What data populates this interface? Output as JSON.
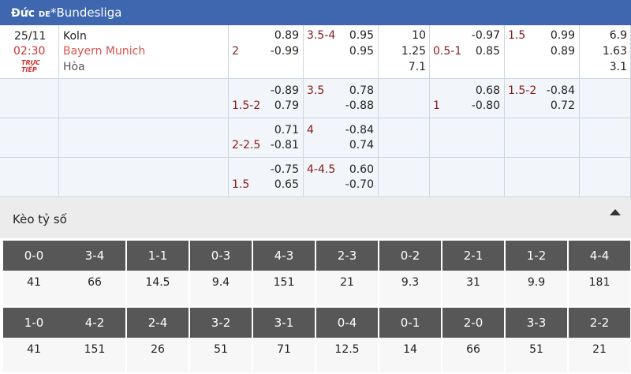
{
  "header": {
    "country": "Đức",
    "code": "DE",
    "league": "*Bundesliga"
  },
  "match": {
    "date": "25/11",
    "time": "02:30",
    "status": [
      "TRỰC",
      "TIẾP"
    ],
    "home": "Koln",
    "away": "Bayern Munich",
    "draw": "Hòa"
  },
  "odds_rows": [
    {
      "handicap": [
        [
          null,
          "0.89"
        ],
        [
          "2",
          "-0.99"
        ]
      ],
      "over_under": [
        [
          "3.5-4",
          "0.95"
        ],
        [
          null,
          "0.95"
        ]
      ],
      "result": [
        "10",
        "1.25",
        "7.1"
      ],
      "half_handicap": [
        [
          null,
          "-0.97"
        ],
        [
          "0.5-1",
          "0.85"
        ]
      ],
      "half_over_under": [
        [
          "1.5",
          "0.99"
        ],
        [
          null,
          "0.89"
        ]
      ],
      "half_result": [
        "6.9",
        "1.63",
        "3.1"
      ]
    },
    {
      "handicap": [
        [
          null,
          "-0.89"
        ],
        [
          "1.5-2",
          "0.79"
        ]
      ],
      "over_under": [
        [
          "3.5",
          "0.78"
        ],
        [
          null,
          "-0.88"
        ]
      ],
      "half_handicap": [
        [
          null,
          "0.68"
        ],
        [
          "1",
          "-0.80"
        ]
      ],
      "half_over_under": [
        [
          "1.5-2",
          "-0.84"
        ],
        [
          null,
          "0.72"
        ]
      ]
    },
    {
      "handicap": [
        [
          null,
          "0.71"
        ],
        [
          "2-2.5",
          "-0.81"
        ]
      ],
      "over_under": [
        [
          "4",
          "-0.84"
        ],
        [
          null,
          "0.74"
        ]
      ]
    },
    {
      "handicap": [
        [
          null,
          "-0.75"
        ],
        [
          "1.5",
          "0.65"
        ]
      ],
      "over_under": [
        [
          "4-4.5",
          "0.60"
        ],
        [
          null,
          "-0.70"
        ]
      ]
    }
  ],
  "correct_score": {
    "title": "Kèo tỷ số",
    "groups": [
      {
        "scores": [
          "0-0",
          "3-4",
          "1-1",
          "0-3",
          "4-3",
          "2-3",
          "0-2",
          "2-1",
          "1-2",
          "4-4"
        ],
        "odds": [
          "41",
          "66",
          "14.5",
          "9.4",
          "151",
          "21",
          "9.3",
          "31",
          "9.9",
          "181"
        ]
      },
      {
        "scores": [
          "1-0",
          "4-2",
          "2-4",
          "3-2",
          "3-1",
          "0-4",
          "0-1",
          "2-0",
          "3-3",
          "2-2"
        ],
        "odds": [
          "41",
          "151",
          "26",
          "51",
          "71",
          "12.5",
          "14",
          "66",
          "51",
          "21"
        ]
      }
    ]
  }
}
